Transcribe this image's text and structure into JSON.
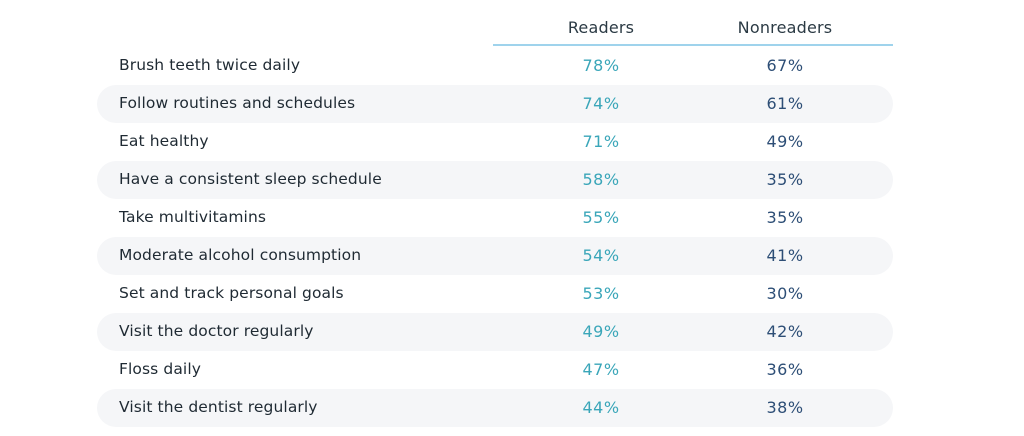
{
  "chart_data": {
    "type": "table",
    "columns": [
      "Readers",
      "Nonreaders"
    ],
    "categories": [
      "Brush teeth twice daily",
      "Follow routines and schedules",
      "Eat healthy",
      "Have a consistent sleep schedule",
      "Take multivitamins",
      "Moderate alcohol consumption",
      "Set and track personal goals",
      "Visit the doctor regularly",
      "Floss daily",
      "Visit the dentist regularly"
    ],
    "series": [
      {
        "name": "Readers",
        "values": [
          78,
          74,
          71,
          58,
          55,
          54,
          53,
          49,
          47,
          44
        ],
        "color": "#3aa6b9"
      },
      {
        "name": "Nonreaders",
        "values": [
          67,
          61,
          49,
          35,
          35,
          41,
          30,
          42,
          36,
          38
        ],
        "color": "#2d4e76"
      }
    ],
    "unit": "%"
  },
  "table": {
    "headers": {
      "readers": "Readers",
      "nonreaders": "Nonreaders"
    },
    "rows": [
      {
        "label": "Brush teeth twice daily",
        "readers": "78%",
        "nonreaders": "67%"
      },
      {
        "label": "Follow routines and schedules",
        "readers": "74%",
        "nonreaders": "61%"
      },
      {
        "label": "Eat healthy",
        "readers": "71%",
        "nonreaders": "49%"
      },
      {
        "label": "Have a consistent sleep schedule",
        "readers": "58%",
        "nonreaders": "35%"
      },
      {
        "label": "Take multivitamins",
        "readers": "55%",
        "nonreaders": "35%"
      },
      {
        "label": "Moderate alcohol consumption",
        "readers": "54%",
        "nonreaders": "41%"
      },
      {
        "label": "Set and track personal goals",
        "readers": "53%",
        "nonreaders": "30%"
      },
      {
        "label": "Visit the doctor regularly",
        "readers": "49%",
        "nonreaders": "42%"
      },
      {
        "label": "Floss daily",
        "readers": "47%",
        "nonreaders": "36%"
      },
      {
        "label": "Visit the dentist regularly",
        "readers": "44%",
        "nonreaders": "38%"
      }
    ]
  }
}
